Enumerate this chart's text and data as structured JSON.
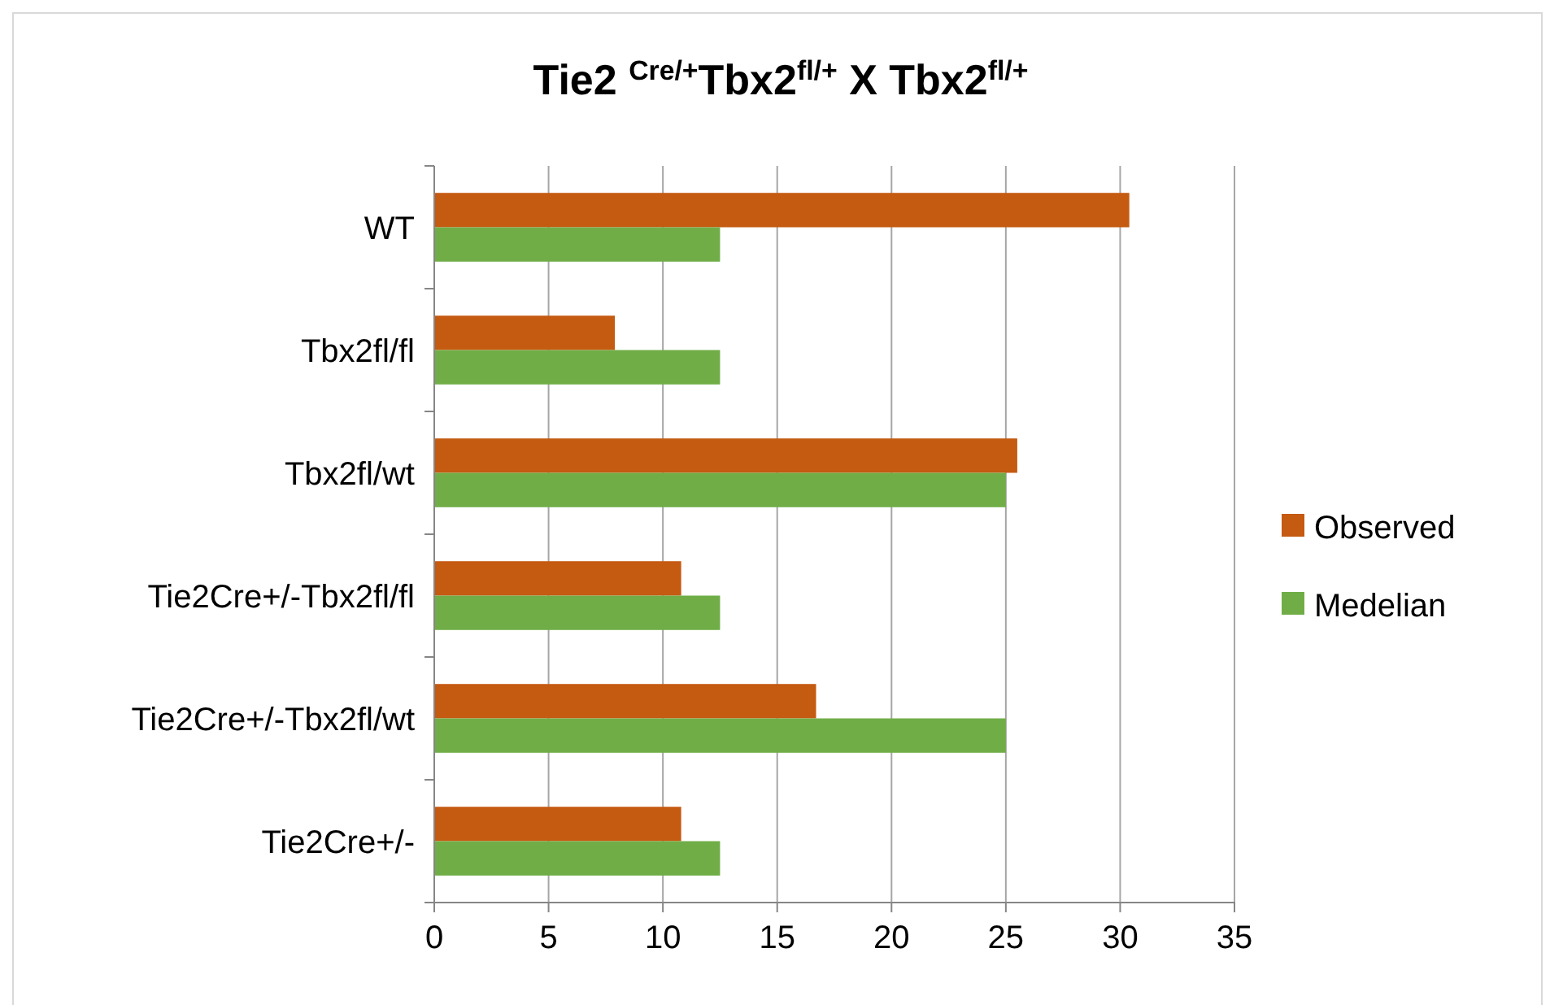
{
  "chart_data": {
    "type": "bar",
    "orientation": "horizontal",
    "title": "Tie2 $^{Cre/+}$Tbx2$^{fl/+}$ X Tbx2$^{fl/+}$",
    "categories": [
      "WT",
      "Tbx2fl/fl",
      "Tbx2fl/wt",
      "Tie2Cre+/-Tbx2fl/fl",
      "Tie2Cre+/-Tbx2fl/wt",
      "Tie2Cre+/-"
    ],
    "series": [
      {
        "name": "Observed",
        "color": "#c55a11",
        "values": [
          30.4,
          7.9,
          25.5,
          10.8,
          16.7,
          10.8
        ]
      },
      {
        "name": "Medelian",
        "color": "#70ad47",
        "values": [
          12.5,
          12.5,
          25,
          12.5,
          25,
          12.5
        ]
      }
    ],
    "xlim": [
      0,
      35
    ],
    "xticks": [
      0,
      5,
      10,
      15,
      20,
      25,
      30,
      35
    ],
    "grid": "x",
    "legend": "right"
  }
}
